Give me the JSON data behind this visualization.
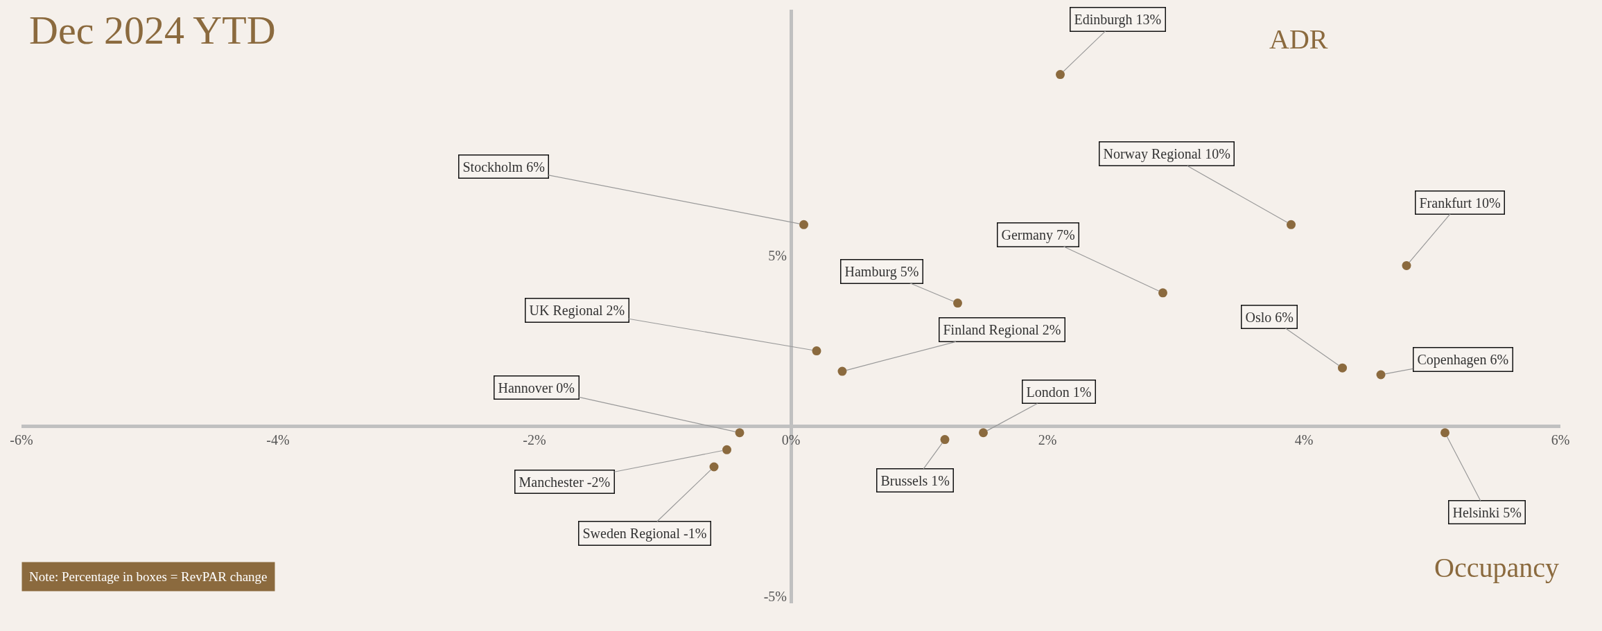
{
  "chart_data": {
    "type": "scatter",
    "title": "Dec 2024 YTD",
    "xlabel": "Occupancy",
    "ylabel": "ADR",
    "x": [
      2.1,
      0.1,
      3.9,
      4.8,
      2.9,
      1.3,
      0.2,
      0.4,
      4.3,
      4.6,
      -0.4,
      1.5,
      1.2,
      5.1,
      -0.5,
      -0.6
    ],
    "series": [
      {
        "color": "#8b6a3e",
        "values": [
          10.3,
          5.9,
          5.9,
          4.7,
          3.9,
          3.6,
          2.2,
          1.6,
          1.7,
          1.5,
          -0.2,
          -0.2,
          -0.4,
          -0.2,
          -0.7,
          -1.2
        ]
      }
    ],
    "marker": "circle",
    "xlim": [
      -6,
      6
    ],
    "ylim": [
      -5.2,
      12.2
    ],
    "xticks": [
      {
        "value": -6,
        "label": "-6%"
      },
      {
        "value": -4,
        "label": "-4%"
      },
      {
        "value": -2,
        "label": "-2%"
      },
      {
        "value": 0,
        "label": "0%"
      },
      {
        "value": 2,
        "label": "2%"
      },
      {
        "value": 4,
        "label": "4%"
      },
      {
        "value": 6,
        "label": "6%"
      }
    ],
    "yticks": [
      {
        "value": -5,
        "label": "-5%"
      },
      {
        "value": 5,
        "label": "5%"
      }
    ],
    "annotations": [
      {
        "text": "Edinburgh 13%",
        "x": 2.1,
        "y": 10.3
      },
      {
        "text": "Stockholm 6%",
        "x": 0.1,
        "y": 5.9
      },
      {
        "text": "Norway Regional 10%",
        "x": 3.9,
        "y": 5.9
      },
      {
        "text": "Frankfurt 10%",
        "x": 4.8,
        "y": 4.7
      },
      {
        "text": "Germany 7%",
        "x": 2.9,
        "y": 3.9
      },
      {
        "text": "Hamburg 5%",
        "x": 1.3,
        "y": 3.6
      },
      {
        "text": "UK Regional 2%",
        "x": 0.2,
        "y": 2.2
      },
      {
        "text": "Finland Regional 2%",
        "x": 0.4,
        "y": 1.6
      },
      {
        "text": "Oslo 6%",
        "x": 4.3,
        "y": 1.7
      },
      {
        "text": "Copenhagen 6%",
        "x": 4.6,
        "y": 1.5
      },
      {
        "text": "Hannover 0%",
        "x": -0.4,
        "y": -0.2
      },
      {
        "text": "London 1%",
        "x": 1.5,
        "y": -0.2
      },
      {
        "text": "Brussels 1%",
        "x": 1.2,
        "y": -0.4
      },
      {
        "text": "Helsinki 5%",
        "x": 5.1,
        "y": -0.2
      },
      {
        "text": "Manchester -2%",
        "x": -0.5,
        "y": -0.7
      },
      {
        "text": "Sweden Regional -1%",
        "x": -0.6,
        "y": -1.2
      },
      "Note: Percentage in boxes = RevPAR change"
    ]
  }
}
